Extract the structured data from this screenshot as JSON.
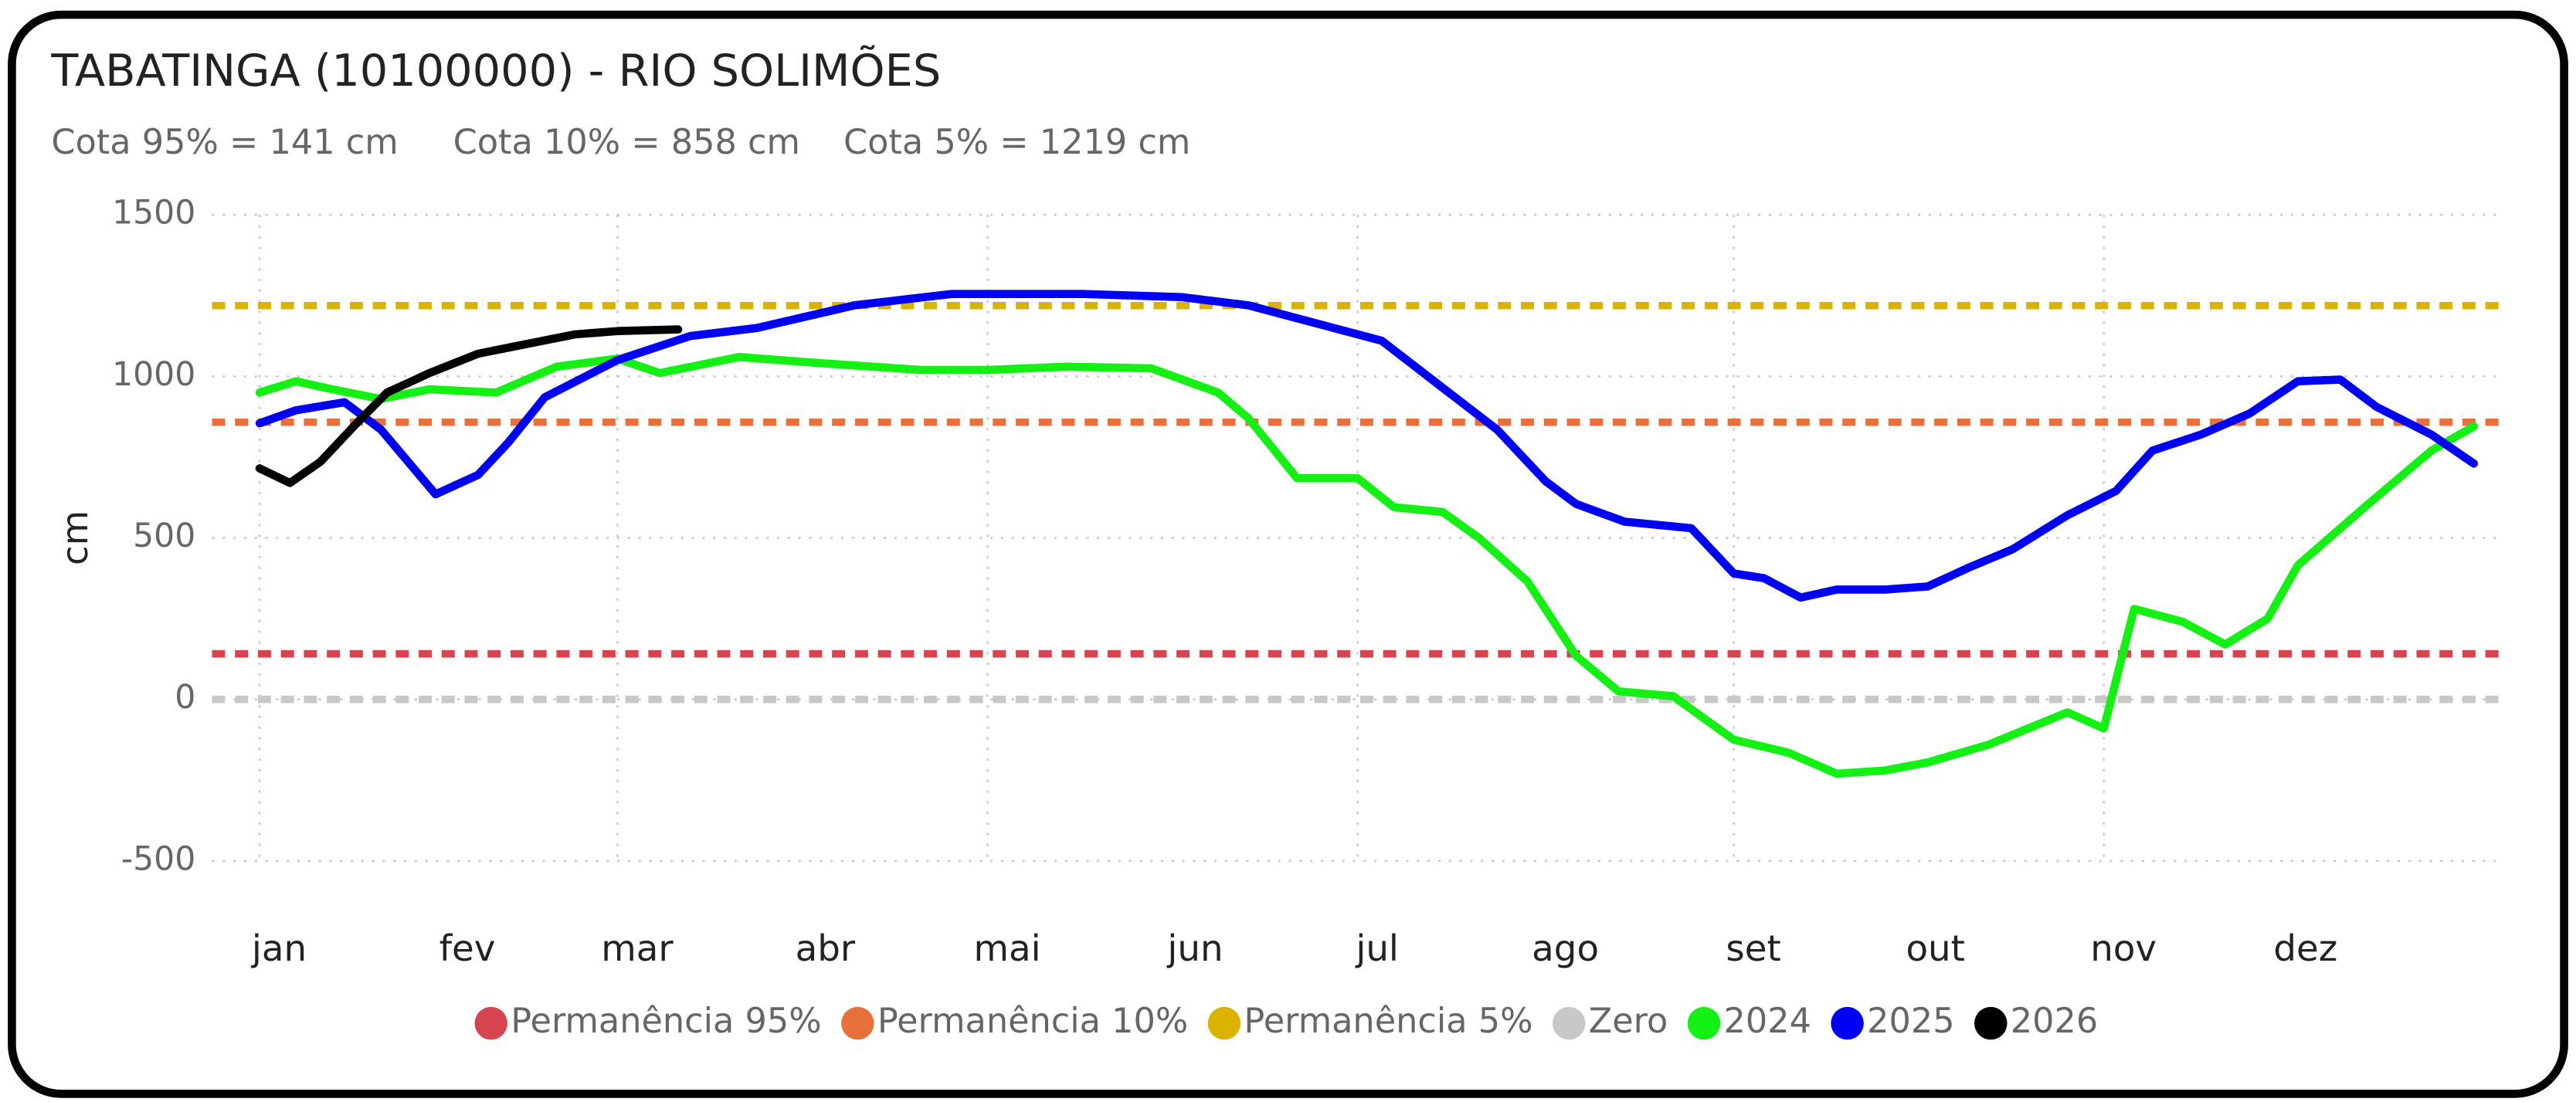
{
  "chart_data": {
    "type": "line",
    "title": "TABATINGA (10100000) - RIO SOLIMÕES",
    "subtitle": [
      "Cota 95% = 141 cm",
      "Cota 10% = 858 cm",
      "Cota 5% = 1219 cm"
    ],
    "y_label": "cm",
    "ylim": [
      -500,
      1500
    ],
    "yticks": [
      -500,
      0,
      500,
      1000,
      1500
    ],
    "xlim": [
      0,
      365
    ],
    "xticks": [
      {
        "value": 0,
        "label": "jan"
      },
      {
        "value": 31,
        "label": "fev"
      },
      {
        "value": 59,
        "label": "mar"
      },
      {
        "value": 90,
        "label": "abr"
      },
      {
        "value": 120,
        "label": "mai"
      },
      {
        "value": 151,
        "label": "jun"
      },
      {
        "value": 181,
        "label": "jul"
      },
      {
        "value": 212,
        "label": "ago"
      },
      {
        "value": 243,
        "label": "set"
      },
      {
        "value": 273,
        "label": "out"
      },
      {
        "value": 304,
        "label": "nov"
      },
      {
        "value": 334,
        "label": "dez"
      }
    ],
    "grid": true,
    "legend": "bottom",
    "reference_lines": [
      {
        "name": "Permanência 95%",
        "color": "#d6454f",
        "value": 141
      },
      {
        "name": "Permanência 10%",
        "color": "#e8703a",
        "value": 858
      },
      {
        "name": "Permanência 5%",
        "color": "#d9b300",
        "value": 1219
      },
      {
        "name": "Zero",
        "color": "#c8c8c8",
        "value": 0
      }
    ],
    "series": [
      {
        "name": "2024",
        "color": "#14f014",
        "x": [
          0,
          6,
          12,
          20,
          28,
          39,
          49,
          59,
          66,
          79,
          93,
          109,
          120,
          133,
          147,
          158,
          163,
          171,
          181,
          187,
          195,
          201,
          209,
          217,
          224,
          233,
          243,
          252,
          260,
          268,
          275,
          285,
          298,
          304,
          309,
          317,
          324,
          331,
          336,
          347,
          358,
          365
        ],
        "values": [
          950,
          985,
          960,
          930,
          960,
          950,
          1030,
          1055,
          1010,
          1060,
          1040,
          1020,
          1020,
          1030,
          1025,
          950,
          870,
          685,
          685,
          595,
          580,
          500,
          365,
          135,
          25,
          10,
          -125,
          -165,
          -230,
          -220,
          -195,
          -140,
          -40,
          -90,
          280,
          240,
          170,
          250,
          415,
          595,
          770,
          845
        ]
      },
      {
        "name": "2025",
        "color": "#0000f5",
        "x": [
          0,
          6,
          14,
          20,
          29,
          36,
          41,
          47,
          59,
          71,
          82,
          98,
          114,
          136,
          152,
          163,
          174,
          185,
          195,
          204,
          212,
          217,
          225,
          236,
          243,
          248,
          254,
          260,
          268,
          275,
          282,
          289,
          298,
          306,
          312,
          320,
          328,
          336,
          343,
          349,
          358,
          365
        ],
        "values": [
          855,
          895,
          920,
          835,
          635,
          695,
          795,
          935,
          1050,
          1125,
          1150,
          1220,
          1255,
          1255,
          1245,
          1220,
          1165,
          1110,
          965,
          835,
          675,
          605,
          550,
          530,
          390,
          375,
          315,
          340,
          340,
          350,
          410,
          465,
          570,
          645,
          770,
          820,
          885,
          985,
          990,
          905,
          820,
          730
        ]
      },
      {
        "name": "2026",
        "color": "#000000",
        "x": [
          0,
          5,
          10,
          16,
          21,
          28,
          36,
          44,
          52,
          59,
          69
        ],
        "values": [
          715,
          670,
          735,
          855,
          950,
          1010,
          1070,
          1100,
          1130,
          1140,
          1145
        ]
      }
    ]
  }
}
